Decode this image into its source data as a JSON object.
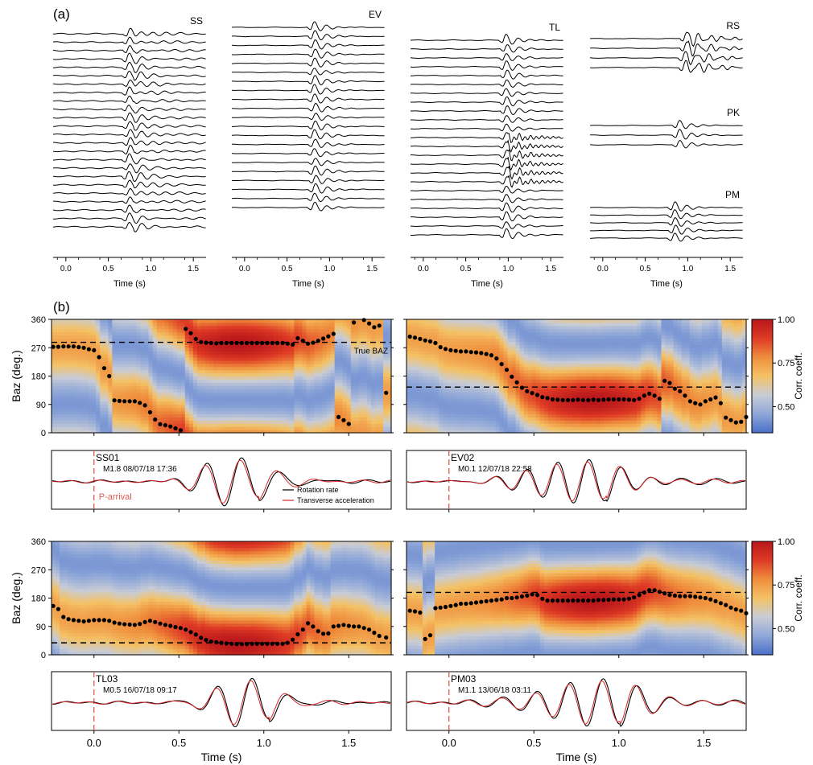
{
  "panel_labels": {
    "a": "(a)",
    "b": "(b)"
  },
  "chart_data": [
    {
      "type": "line",
      "panel": "(a)",
      "xlabel": "Time (s)",
      "xticks": [
        "0.0",
        "0.5",
        "1.0",
        "1.5"
      ],
      "xlim": [
        -0.15,
        1.65
      ],
      "groups": [
        {
          "name": "SS",
          "traces": 24,
          "arrival_s": 0.72,
          "style": "noisy-coda"
        },
        {
          "name": "EV",
          "traces": 21,
          "arrival_s": 0.8,
          "style": "clean"
        },
        {
          "name": "TL",
          "traces": 23,
          "arrival_s": 0.95,
          "style": "ringing"
        },
        {
          "name": "RS",
          "traces": 4,
          "arrival_s": 0.95,
          "style": "oscillatory"
        },
        {
          "name": "PK",
          "traces": 3,
          "arrival_s": 0.88,
          "style": "clean"
        },
        {
          "name": "PM",
          "traces": 5,
          "arrival_s": 0.82,
          "style": "clean"
        }
      ]
    },
    {
      "type": "heatmap",
      "panel": "(b)",
      "station": "SS01",
      "event": "M1.8 08/07/18 17:36",
      "ylabel": "Baz (deg.)",
      "yticks": [
        "0",
        "90",
        "180",
        "270",
        "360"
      ],
      "ylim": [
        0,
        360
      ],
      "xlim": [
        -0.25,
        1.75
      ],
      "true_baz": 287,
      "true_baz_label": "True BAZ",
      "colorbar": {
        "label": "Corr. coeff.",
        "ticks": [
          "0.50",
          "0.75",
          "1.00"
        ],
        "range": [
          0.35,
          1.0
        ]
      },
      "baz_points": [
        [
          -0.24,
          273
        ],
        [
          -0.21,
          273
        ],
        [
          -0.18,
          274
        ],
        [
          -0.15,
          274
        ],
        [
          -0.12,
          274
        ],
        [
          -0.09,
          272
        ],
        [
          -0.06,
          270
        ],
        [
          -0.03,
          265
        ],
        [
          0.0,
          262
        ],
        [
          0.03,
          240
        ],
        [
          0.06,
          205
        ],
        [
          0.09,
          180
        ],
        [
          0.12,
          103
        ],
        [
          0.15,
          101
        ],
        [
          0.18,
          100
        ],
        [
          0.21,
          100
        ],
        [
          0.24,
          100
        ],
        [
          0.27,
          95
        ],
        [
          0.3,
          87
        ],
        [
          0.33,
          65
        ],
        [
          0.36,
          42
        ],
        [
          0.39,
          27
        ],
        [
          0.42,
          24
        ],
        [
          0.45,
          20
        ],
        [
          0.48,
          14
        ],
        [
          0.51,
          8
        ],
        [
          0.54,
          330
        ],
        [
          0.57,
          316
        ],
        [
          0.6,
          298
        ],
        [
          0.63,
          288
        ],
        [
          0.66,
          286
        ],
        [
          0.69,
          285
        ],
        [
          0.72,
          284
        ],
        [
          0.75,
          285
        ],
        [
          0.78,
          285
        ],
        [
          0.81,
          285
        ],
        [
          0.84,
          285
        ],
        [
          0.87,
          285
        ],
        [
          0.9,
          285
        ],
        [
          0.93,
          285
        ],
        [
          0.96,
          285
        ],
        [
          0.99,
          285
        ],
        [
          1.02,
          285
        ],
        [
          1.05,
          285
        ],
        [
          1.08,
          285
        ],
        [
          1.11,
          285
        ],
        [
          1.14,
          283
        ],
        [
          1.17,
          280
        ],
        [
          1.2,
          300
        ],
        [
          1.23,
          292
        ],
        [
          1.26,
          283
        ],
        [
          1.29,
          286
        ],
        [
          1.32,
          292
        ],
        [
          1.35,
          299
        ],
        [
          1.38,
          306
        ],
        [
          1.41,
          314
        ],
        [
          1.44,
          50
        ],
        [
          1.47,
          40
        ],
        [
          1.5,
          28
        ],
        [
          1.53,
          350
        ],
        [
          1.59,
          358
        ],
        [
          1.62,
          347
        ],
        [
          1.65,
          335
        ],
        [
          1.68,
          340
        ],
        [
          1.72,
          127
        ]
      ]
    },
    {
      "type": "line",
      "panel": "(b)",
      "station": "SS01",
      "event": "M1.8 08/07/18 17:36",
      "p_arrival_label": "P-arrival",
      "legend": [
        "Rotation rate",
        "Transverse acceleration"
      ],
      "legend_position": "bottom-right",
      "xlim": [
        -0.25,
        1.75
      ],
      "series": [
        {
          "name": "Rotation rate"
        },
        {
          "name": "Transverse acceleration"
        }
      ]
    },
    {
      "type": "heatmap",
      "panel": "(b)",
      "station": "EV02",
      "event": "M0.1 12/07/18 22:58",
      "ylabel": "",
      "ylim": [
        0,
        360
      ],
      "xlim": [
        -0.25,
        1.75
      ],
      "true_baz": 145,
      "colorbar": {
        "label": "Corr. coeff.",
        "ticks": [
          "0.50",
          "0.75",
          "1.00"
        ],
        "range": [
          0.35,
          1.0
        ]
      },
      "baz_points": [
        [
          -0.23,
          305
        ],
        [
          -0.2,
          302
        ],
        [
          -0.17,
          298
        ],
        [
          -0.14,
          293
        ],
        [
          -0.11,
          290
        ],
        [
          -0.08,
          285
        ],
        [
          -0.05,
          272
        ],
        [
          -0.02,
          266
        ],
        [
          0.01,
          262
        ],
        [
          0.04,
          260
        ],
        [
          0.07,
          258
        ],
        [
          0.1,
          258
        ],
        [
          0.13,
          256
        ],
        [
          0.16,
          255
        ],
        [
          0.19,
          253
        ],
        [
          0.22,
          250
        ],
        [
          0.25,
          246
        ],
        [
          0.28,
          236
        ],
        [
          0.31,
          218
        ],
        [
          0.34,
          200
        ],
        [
          0.37,
          178
        ],
        [
          0.4,
          160
        ],
        [
          0.43,
          143
        ],
        [
          0.46,
          132
        ],
        [
          0.49,
          126
        ],
        [
          0.52,
          120
        ],
        [
          0.55,
          113
        ],
        [
          0.58,
          110
        ],
        [
          0.61,
          106
        ],
        [
          0.64,
          105
        ],
        [
          0.67,
          104
        ],
        [
          0.7,
          104
        ],
        [
          0.73,
          104
        ],
        [
          0.76,
          105
        ],
        [
          0.79,
          104
        ],
        [
          0.82,
          104
        ],
        [
          0.85,
          105
        ],
        [
          0.88,
          104
        ],
        [
          0.91,
          105
        ],
        [
          0.94,
          106
        ],
        [
          0.97,
          106
        ],
        [
          1.0,
          106
        ],
        [
          1.03,
          106
        ],
        [
          1.06,
          105
        ],
        [
          1.09,
          104
        ],
        [
          1.12,
          108
        ],
        [
          1.15,
          118
        ],
        [
          1.18,
          124
        ],
        [
          1.21,
          118
        ],
        [
          1.24,
          108
        ],
        [
          1.27,
          165
        ],
        [
          1.3,
          158
        ],
        [
          1.33,
          140
        ],
        [
          1.36,
          132
        ],
        [
          1.39,
          118
        ],
        [
          1.42,
          100
        ],
        [
          1.45,
          94
        ],
        [
          1.48,
          90
        ],
        [
          1.51,
          100
        ],
        [
          1.54,
          106
        ],
        [
          1.57,
          112
        ],
        [
          1.6,
          94
        ],
        [
          1.63,
          48
        ],
        [
          1.66,
          40
        ],
        [
          1.69,
          33
        ],
        [
          1.72,
          35
        ],
        [
          1.75,
          50
        ]
      ]
    },
    {
      "type": "line",
      "panel": "(b)",
      "station": "EV02",
      "event": "M0.1 12/07/18 22:58",
      "xlim": [
        -0.25,
        1.75
      ],
      "series": [
        {
          "name": "Rotation rate"
        },
        {
          "name": "Transverse acceleration"
        }
      ]
    },
    {
      "type": "heatmap",
      "panel": "(b)",
      "station": "TL03",
      "event": "M0.5 16/07/18 09:17",
      "ylabel": "Baz (deg.)",
      "yticks": [
        "0",
        "90",
        "180",
        "270",
        "360"
      ],
      "ylim": [
        0,
        360
      ],
      "xlim": [
        -0.25,
        1.75
      ],
      "true_baz": 38,
      "colorbar": {
        "label": "Corr. coeff.",
        "ticks": [
          "0.50",
          "0.75",
          "1.00"
        ],
        "range": [
          0.35,
          1.0
        ]
      },
      "baz_points": [
        [
          -0.24,
          155
        ],
        [
          -0.21,
          145
        ],
        [
          -0.18,
          120
        ],
        [
          -0.15,
          113
        ],
        [
          -0.12,
          110
        ],
        [
          -0.09,
          108
        ],
        [
          -0.06,
          106
        ],
        [
          -0.03,
          108
        ],
        [
          0.0,
          110
        ],
        [
          0.03,
          110
        ],
        [
          0.06,
          110
        ],
        [
          0.09,
          108
        ],
        [
          0.12,
          102
        ],
        [
          0.15,
          99
        ],
        [
          0.18,
          97
        ],
        [
          0.21,
          96
        ],
        [
          0.24,
          95
        ],
        [
          0.27,
          98
        ],
        [
          0.3,
          104
        ],
        [
          0.33,
          108
        ],
        [
          0.36,
          104
        ],
        [
          0.39,
          99
        ],
        [
          0.42,
          95
        ],
        [
          0.45,
          92
        ],
        [
          0.48,
          88
        ],
        [
          0.51,
          85
        ],
        [
          0.54,
          80
        ],
        [
          0.57,
          72
        ],
        [
          0.6,
          64
        ],
        [
          0.63,
          54
        ],
        [
          0.66,
          47
        ],
        [
          0.69,
          42
        ],
        [
          0.72,
          40
        ],
        [
          0.75,
          38
        ],
        [
          0.78,
          36
        ],
        [
          0.81,
          35
        ],
        [
          0.84,
          34
        ],
        [
          0.87,
          34
        ],
        [
          0.9,
          34
        ],
        [
          0.93,
          35
        ],
        [
          0.96,
          35
        ],
        [
          0.99,
          35
        ],
        [
          1.02,
          35
        ],
        [
          1.05,
          35
        ],
        [
          1.08,
          35
        ],
        [
          1.11,
          35
        ],
        [
          1.14,
          38
        ],
        [
          1.17,
          48
        ],
        [
          1.2,
          65
        ],
        [
          1.23,
          80
        ],
        [
          1.26,
          100
        ],
        [
          1.29,
          90
        ],
        [
          1.32,
          75
        ],
        [
          1.35,
          67
        ],
        [
          1.38,
          68
        ],
        [
          1.41,
          90
        ],
        [
          1.44,
          92
        ],
        [
          1.47,
          95
        ],
        [
          1.5,
          92
        ],
        [
          1.53,
          90
        ],
        [
          1.56,
          90
        ],
        [
          1.59,
          85
        ],
        [
          1.62,
          80
        ],
        [
          1.65,
          70
        ],
        [
          1.68,
          60
        ],
        [
          1.72,
          55
        ]
      ]
    },
    {
      "type": "line",
      "panel": "(b)",
      "station": "TL03",
      "event": "M0.5 16/07/18 09:17",
      "xlim": [
        -0.25,
        1.75
      ],
      "series": [
        {
          "name": "Rotation rate"
        },
        {
          "name": "Transverse acceleration"
        }
      ]
    },
    {
      "type": "heatmap",
      "panel": "(b)",
      "station": "PM03",
      "event": "M1.1 13/06/18 03:11",
      "ylabel": "",
      "ylim": [
        0,
        360
      ],
      "xlim": [
        -0.25,
        1.75
      ],
      "true_baz": 198,
      "colorbar": {
        "label": "Corr. coeff.",
        "ticks": [
          "0.50",
          "0.75",
          "1.00"
        ],
        "range": [
          0.35,
          1.0
        ]
      },
      "baz_points": [
        [
          -0.23,
          140
        ],
        [
          -0.2,
          138
        ],
        [
          -0.17,
          134
        ],
        [
          -0.14,
          50
        ],
        [
          -0.11,
          62
        ],
        [
          -0.08,
          148
        ],
        [
          -0.05,
          150
        ],
        [
          -0.02,
          152
        ],
        [
          0.01,
          155
        ],
        [
          0.04,
          158
        ],
        [
          0.07,
          162
        ],
        [
          0.1,
          162
        ],
        [
          0.13,
          164
        ],
        [
          0.16,
          166
        ],
        [
          0.19,
          168
        ],
        [
          0.22,
          170
        ],
        [
          0.25,
          172
        ],
        [
          0.28,
          174
        ],
        [
          0.31,
          176
        ],
        [
          0.34,
          180
        ],
        [
          0.37,
          180
        ],
        [
          0.4,
          182
        ],
        [
          0.43,
          185
        ],
        [
          0.46,
          188
        ],
        [
          0.49,
          192
        ],
        [
          0.52,
          190
        ],
        [
          0.55,
          178
        ],
        [
          0.58,
          172
        ],
        [
          0.61,
          172
        ],
        [
          0.64,
          172
        ],
        [
          0.67,
          172
        ],
        [
          0.7,
          172
        ],
        [
          0.73,
          172
        ],
        [
          0.76,
          172
        ],
        [
          0.79,
          172
        ],
        [
          0.82,
          172
        ],
        [
          0.85,
          172
        ],
        [
          0.88,
          174
        ],
        [
          0.91,
          174
        ],
        [
          0.94,
          175
        ],
        [
          0.97,
          176
        ],
        [
          1.0,
          176
        ],
        [
          1.03,
          176
        ],
        [
          1.06,
          178
        ],
        [
          1.09,
          182
        ],
        [
          1.12,
          190
        ],
        [
          1.15,
          198
        ],
        [
          1.18,
          205
        ],
        [
          1.21,
          205
        ],
        [
          1.24,
          200
        ],
        [
          1.27,
          195
        ],
        [
          1.3,
          190
        ],
        [
          1.33,
          188
        ],
        [
          1.36,
          186
        ],
        [
          1.39,
          186
        ],
        [
          1.42,
          186
        ],
        [
          1.45,
          184
        ],
        [
          1.48,
          182
        ],
        [
          1.51,
          180
        ],
        [
          1.54,
          176
        ],
        [
          1.57,
          170
        ],
        [
          1.6,
          164
        ],
        [
          1.63,
          158
        ],
        [
          1.66,
          150
        ],
        [
          1.69,
          144
        ],
        [
          1.72,
          140
        ],
        [
          1.75,
          132
        ]
      ]
    },
    {
      "type": "line",
      "panel": "(b)",
      "station": "PM03",
      "event": "M1.1 13/06/18 03:11",
      "xlim": [
        -0.25,
        1.75
      ],
      "series": [
        {
          "name": "Rotation rate"
        },
        {
          "name": "Transverse acceleration"
        }
      ]
    },
    {
      "type": "line",
      "panel": "(b)",
      "xlabel": "Time (s)",
      "xticks": [
        "0.0",
        "0.5",
        "1.0",
        "1.5"
      ],
      "xlim": [
        -0.25,
        1.75
      ]
    }
  ],
  "colors": {
    "trace": "#000000",
    "rotation": "#000000",
    "acceleration": "#d62728",
    "p_arrival": "#e05a4e",
    "points": "#000000",
    "cmap": [
      "#4a6fc9",
      "#8fa7d8",
      "#c8ccd6",
      "#f4c265",
      "#ef8d3c",
      "#de3a25",
      "#b8161b"
    ]
  }
}
